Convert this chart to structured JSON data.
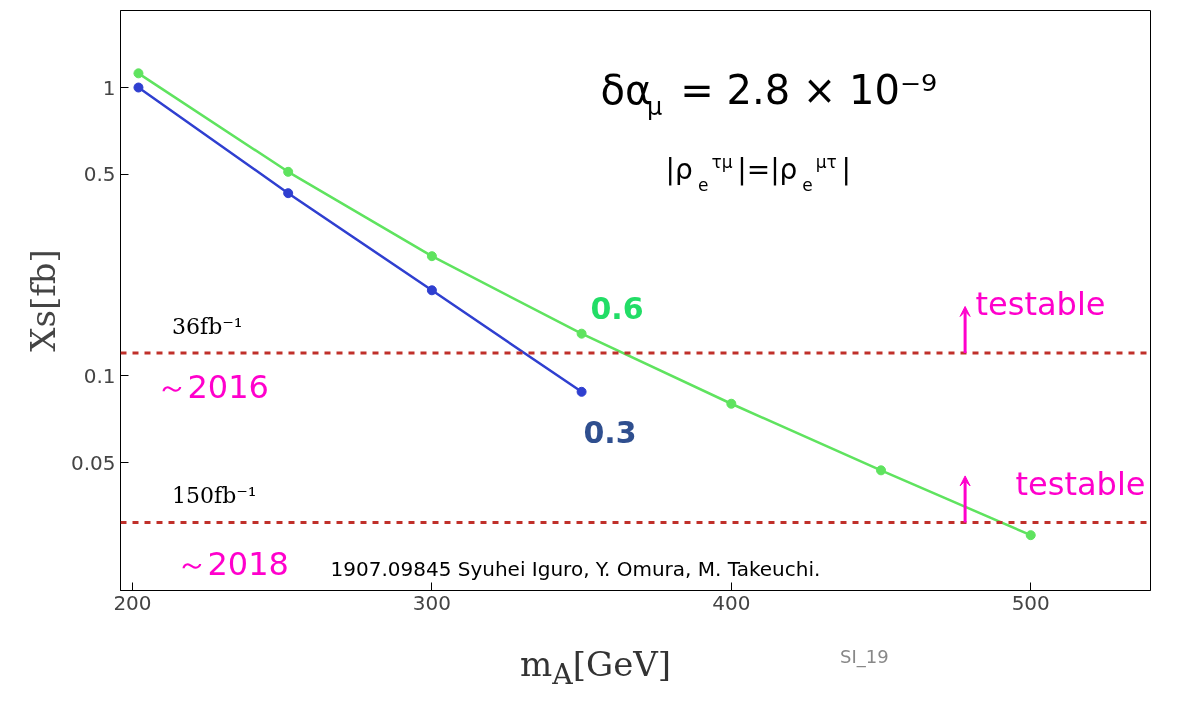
{
  "chart_data": {
    "type": "line",
    "xlabel": "m$_{A}$[GeV]",
    "ylabel": "Xs[fb]",
    "log": "y",
    "grid": false,
    "marker": "circle",
    "line_style": "solid",
    "xlim": [
      196,
      540
    ],
    "ylim": [
      0.018,
      1.85
    ],
    "xticks": [
      200,
      300,
      400,
      500
    ],
    "yticks": [
      0.05,
      0.1,
      0.5,
      1
    ],
    "series": [
      {
        "color": "#2f3fd0",
        "x": [
          202,
          252,
          300,
          350
        ],
        "values": [
          1.0,
          0.43,
          0.198,
          0.088
        ]
      },
      {
        "color": "#5fe35f",
        "x": [
          202,
          252,
          300,
          350,
          400,
          450,
          500
        ],
        "values": [
          1.12,
          0.51,
          0.26,
          0.14,
          0.08,
          0.047,
          0.028
        ]
      }
    ],
    "ref_lines": [
      {
        "axis": "y",
        "value": 0.12,
        "label": "36fb⁻¹",
        "color": "#c0302a",
        "line_style": "dashed"
      },
      {
        "axis": "y",
        "value": 0.031,
        "label": "150fb⁻¹",
        "color": "#c0302a",
        "line_style": "dashed"
      }
    ],
    "annotations": [
      "δα$_{μ}$ = 2.8 × 10⁻⁹",
      "|ρ$_{e}$$^{τμ}$|=|ρ$_{e}$$^{μτ}$|",
      "0.6",
      "0.3",
      "testable",
      "testable",
      "～2016",
      "～2018",
      "1907.09845  Syuhei Iguro, Y. Omura, M. Takeuchi.",
      "SI_19"
    ]
  }
}
